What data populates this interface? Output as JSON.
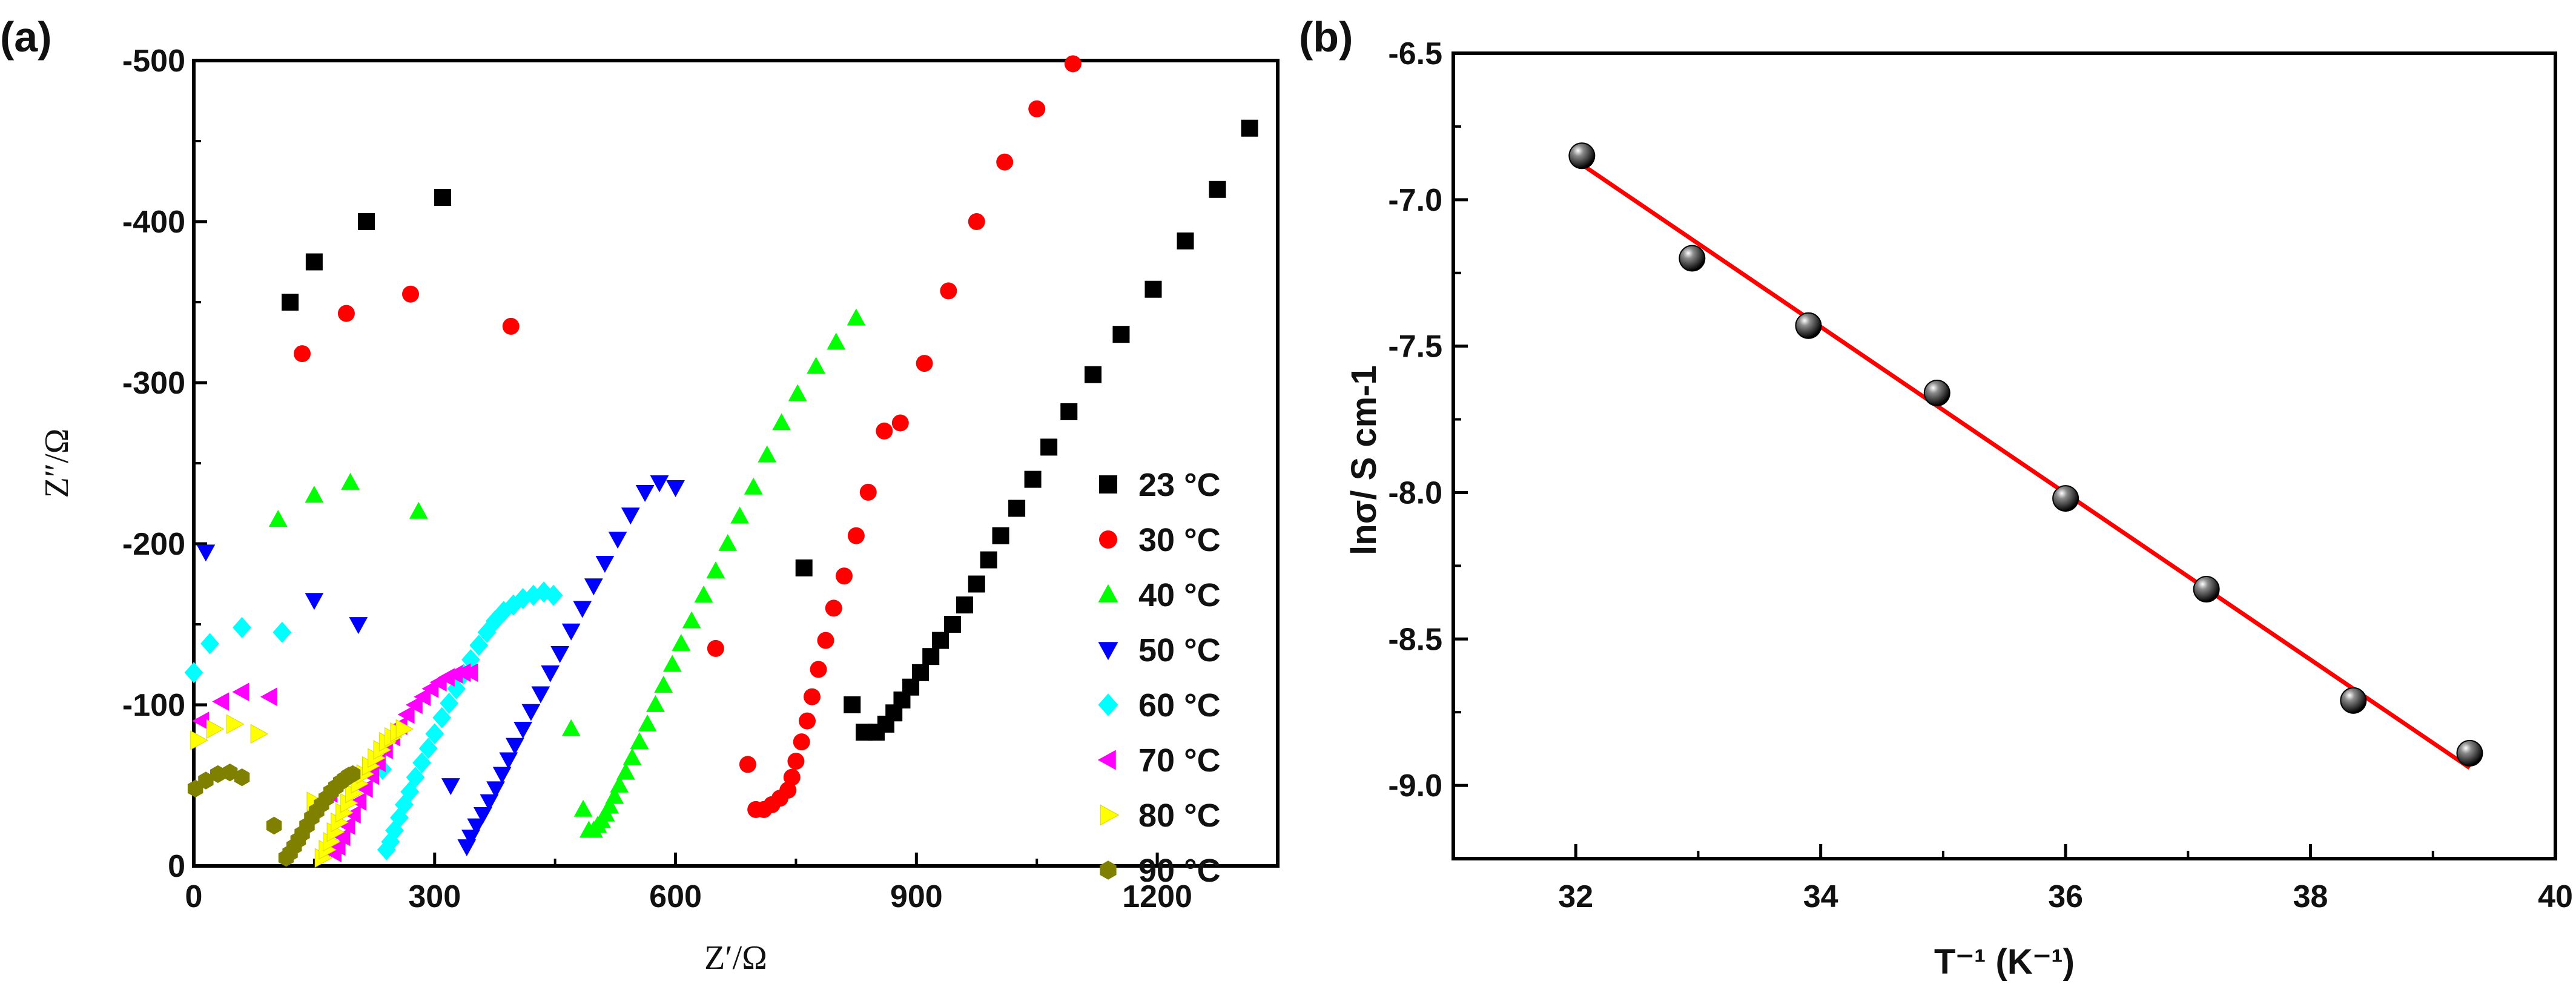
{
  "chart_data": [
    {
      "type": "scatter",
      "panel_label": "(a)",
      "title": "",
      "xlabel": "Z′/Ω",
      "ylabel": "Z″/Ω",
      "xlim": [
        0,
        1350
      ],
      "ylim": [
        0,
        -500
      ],
      "x_ticks": [
        0,
        300,
        600,
        900,
        1200
      ],
      "x_tick_labels": [
        "0",
        "300",
        "600",
        "900",
        "1200"
      ],
      "y_ticks": [
        0,
        -100,
        -200,
        -300,
        -400,
        -500
      ],
      "y_tick_labels": [
        "0",
        "-100",
        "-200",
        "-300",
        "-400",
        "-500"
      ],
      "legend_position": "right",
      "series": [
        {
          "name": "23 °C",
          "color": "#000000",
          "marker": "square",
          "x": [
            120,
            150,
            215,
            310,
            760,
            820,
            835,
            850,
            862,
            872,
            882,
            893,
            905,
            918,
            930,
            945,
            960,
            975,
            990,
            1005,
            1025,
            1045,
            1065,
            1090,
            1120,
            1155,
            1195,
            1235,
            1275,
            1315
          ],
          "y": [
            -350,
            -375,
            -400,
            -415,
            -185,
            -100,
            -83,
            -83,
            -88,
            -95,
            -103,
            -111,
            -120,
            -130,
            -140,
            -150,
            -162,
            -175,
            -190,
            -205,
            -222,
            -240,
            -260,
            -282,
            -305,
            -330,
            -358,
            -388,
            -420,
            -458
          ]
        },
        {
          "name": "30 °C",
          "color": "#ff0000",
          "marker": "circle",
          "x": [
            135,
            190,
            270,
            395,
            650,
            690,
            700,
            710,
            720,
            730,
            740,
            745,
            750,
            757,
            764,
            770,
            778,
            787,
            797,
            810,
            825,
            840,
            860,
            880,
            910,
            940,
            975,
            1010,
            1050,
            1095
          ],
          "y": [
            -318,
            -343,
            -355,
            -335,
            -135,
            -63,
            -35,
            -35,
            -38,
            -42,
            -47,
            -55,
            -65,
            -77,
            -90,
            -105,
            -122,
            -140,
            -160,
            -180,
            -205,
            -232,
            -270,
            -275,
            -312,
            -357,
            -400,
            -437,
            -470,
            -498
          ]
        },
        {
          "name": "40 °C",
          "color": "#00ff00",
          "marker": "triangle-up",
          "x": [
            105,
            150,
            195,
            280,
            470,
            485,
            492,
            498,
            503,
            508,
            513,
            518,
            524,
            530,
            538,
            546,
            555,
            565,
            575,
            585,
            596,
            607,
            620,
            635,
            650,
            665,
            680,
            697,
            714,
            732,
            752,
            775,
            800,
            825
          ],
          "y": [
            -215,
            -230,
            -238,
            -220,
            -85,
            -35,
            -22,
            -22,
            -25,
            -28,
            -32,
            -37,
            -43,
            -50,
            -58,
            -67,
            -77,
            -88,
            -100,
            -112,
            -125,
            -138,
            -152,
            -168,
            -183,
            -200,
            -217,
            -235,
            -255,
            -275,
            -293,
            -310,
            -325,
            -340
          ]
        },
        {
          "name": "50 °C",
          "color": "#0000ff",
          "marker": "triangle-down",
          "x": [
            15,
            150,
            205,
            320,
            340,
            345,
            352,
            360,
            368,
            376,
            384,
            392,
            400,
            410,
            420,
            432,
            444,
            456,
            470,
            484,
            498,
            512,
            528,
            544,
            562,
            580,
            600
          ],
          "y": [
            -195,
            -165,
            -150,
            -50,
            -12,
            -18,
            -25,
            -32,
            -40,
            -48,
            -57,
            -66,
            -75,
            -85,
            -96,
            -107,
            -120,
            -132,
            -146,
            -160,
            -174,
            -188,
            -203,
            -218,
            -232,
            -238,
            -235
          ]
        },
        {
          "name": "60 °C",
          "color": "#00ffff",
          "marker": "diamond",
          "x": [
            0,
            20,
            60,
            110,
            235,
            240,
            245,
            250,
            256,
            262,
            269,
            276,
            284,
            292,
            300,
            309,
            318,
            327,
            336,
            345,
            355,
            365,
            375,
            386,
            398,
            410,
            423,
            436,
            448
          ],
          "y": [
            -120,
            -138,
            -148,
            -145,
            -60,
            -10,
            -15,
            -22,
            -30,
            -38,
            -46,
            -55,
            -64,
            -73,
            -82,
            -92,
            -101,
            -110,
            -119,
            -128,
            -137,
            -145,
            -152,
            -158,
            -162,
            -166,
            -168,
            -170,
            -168
          ]
        },
        {
          "name": "70 °C",
          "color": "#ff00ff",
          "marker": "triangle-left",
          "x": [
            10,
            35,
            60,
            95,
            170,
            175,
            180,
            186,
            192,
            199,
            206,
            214,
            222,
            230,
            239,
            248,
            257,
            266,
            276,
            286,
            296,
            306,
            316,
            326,
            336,
            345
          ],
          "y": [
            -90,
            -102,
            -108,
            -105,
            -45,
            -8,
            -12,
            -18,
            -25,
            -32,
            -40,
            -48,
            -56,
            -64,
            -72,
            -80,
            -87,
            -94,
            -100,
            -105,
            -110,
            -114,
            -117,
            -119,
            -120,
            -120
          ]
        },
        {
          "name": "80 °C",
          "color": "#ffff00",
          "marker": "triangle-right",
          "x": [
            5,
            25,
            50,
            80,
            150,
            160,
            165,
            170,
            175,
            180,
            186,
            192,
            198,
            205,
            212,
            219,
            226,
            233,
            240,
            247,
            254,
            261
          ],
          "y": [
            -78,
            -85,
            -88,
            -82,
            -40,
            -5,
            -10,
            -15,
            -21,
            -27,
            -33,
            -39,
            -45,
            -51,
            -57,
            -62,
            -67,
            -72,
            -77,
            -80,
            -83,
            -85
          ]
        },
        {
          "name": "90 °C",
          "color": "#808000",
          "marker": "hexagon",
          "x": [
            2,
            15,
            30,
            45,
            60,
            100,
            115,
            120,
            125,
            130,
            135,
            141,
            147,
            153,
            159,
            165,
            171,
            177,
            183,
            188,
            193,
            198
          ],
          "y": [
            -48,
            -53,
            -57,
            -58,
            -55,
            -25,
            -5,
            -8,
            -12,
            -16,
            -20,
            -25,
            -30,
            -34,
            -38,
            -42,
            -46,
            -49,
            -52,
            -54,
            -56,
            -57
          ]
        }
      ]
    },
    {
      "type": "scatter",
      "panel_label": "(b)",
      "title": "",
      "xlabel": "T⁻¹ (K⁻¹)",
      "ylabel": "lnσ/ S cm-1",
      "xlim": [
        31,
        40
      ],
      "ylim": [
        -9.25,
        -6.5
      ],
      "x_ticks": [
        32,
        34,
        36,
        38,
        40
      ],
      "x_tick_labels": [
        "32",
        "34",
        "36",
        "38",
        "40"
      ],
      "y_ticks": [
        -9.0,
        -8.5,
        -8.0,
        -7.5,
        -7.0,
        -6.5
      ],
      "y_tick_labels": [
        "-9.0",
        "-8.5",
        "-8.0",
        "-7.5",
        "-7.0",
        "-6.5"
      ],
      "points": {
        "x": [
          32.05,
          32.95,
          33.9,
          34.95,
          36.0,
          37.15,
          38.35,
          39.3
        ],
        "y": [
          -6.85,
          -7.2,
          -7.43,
          -7.66,
          -8.02,
          -8.33,
          -8.71,
          -8.89
        ],
        "color": "#000000",
        "marker": "sphere"
      },
      "fit_line": {
        "x": [
          32.05,
          39.3
        ],
        "y": [
          -6.88,
          -8.94
        ],
        "color": "#ff0000"
      }
    }
  ]
}
